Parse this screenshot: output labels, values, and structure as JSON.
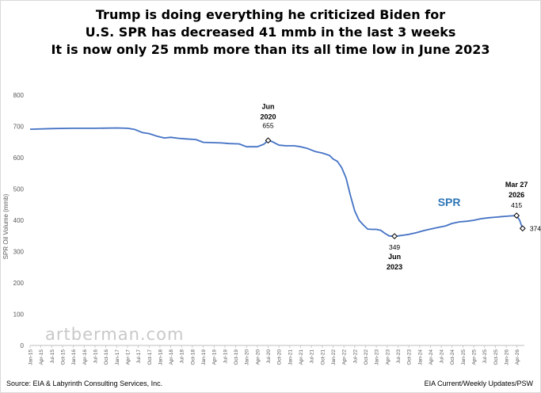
{
  "titles": {
    "line1": "Trump is doing everything he criticized Biden for",
    "line2": "U.S. SPR has decreased 41 mmb in the last 3 weeks",
    "line3": "It is now only 25 mmb more than its all time low in June 2023"
  },
  "footer": {
    "source_left": "Source: EIA & Labyrinth Consulting Services, Inc.",
    "source_right": "EIA Current/Weekly Updates/PSW",
    "watermark": "artberman.com"
  },
  "colors": {
    "line": "#4472c4",
    "series_label": "#2e75b6",
    "axis": "#bfbfbf",
    "text": "#595959"
  },
  "chart_data": {
    "type": "line",
    "ylabel": "SPR Oil Volume (mmb)",
    "xlabel": "",
    "ylim": [
      0,
      800
    ],
    "yticks": [
      0,
      100,
      200,
      300,
      400,
      500,
      600,
      700,
      800
    ],
    "xlim": [
      2015.0,
      2026.42
    ],
    "grid": false,
    "legend": "none",
    "xtick_labels": [
      "Jan-15",
      "Apr-15",
      "Jul-15",
      "Oct-15",
      "Jan-16",
      "Apr-16",
      "Jul-16",
      "Oct-16",
      "Jan-17",
      "Apr-17",
      "Jul-17",
      "Oct-17",
      "Jan-18",
      "Apr-18",
      "Jul-18",
      "Oct-18",
      "Jan-19",
      "Apr-19",
      "Jul-19",
      "Oct-19",
      "Jan-20",
      "Apr-20",
      "Jul-20",
      "Oct-20",
      "Jan-21",
      "Apr-21",
      "Jul-21",
      "Oct-21",
      "Jan-22",
      "Apr-22",
      "Jul-22",
      "Oct-22",
      "Jan-23",
      "Apr-23",
      "Jul-23",
      "Oct-23",
      "Jan-24",
      "Apr-24",
      "Jul-24",
      "Oct-24",
      "Jan-25",
      "Apr-25",
      "Jul-25",
      "Oct-25",
      "Jan-26",
      "Apr-26"
    ],
    "series": [
      {
        "name": "SPR",
        "x": [
          2015.0,
          2015.5,
          2016.0,
          2016.5,
          2017.0,
          2017.25,
          2017.42,
          2017.6,
          2017.75,
          2017.92,
          2018.1,
          2018.25,
          2018.42,
          2018.6,
          2018.83,
          2019.0,
          2019.2,
          2019.42,
          2019.6,
          2019.83,
          2020.0,
          2020.25,
          2020.4,
          2020.5,
          2020.6,
          2020.75,
          2020.92,
          2021.1,
          2021.25,
          2021.4,
          2021.58,
          2021.75,
          2021.92,
          2022.0,
          2022.1,
          2022.2,
          2022.3,
          2022.4,
          2022.5,
          2022.6,
          2022.7,
          2022.8,
          2022.9,
          2023.0,
          2023.1,
          2023.2,
          2023.3,
          2023.42,
          2023.5,
          2023.6,
          2023.75,
          2023.92,
          2024.1,
          2024.25,
          2024.42,
          2024.6,
          2024.75,
          2024.92,
          2025.1,
          2025.25,
          2025.42,
          2025.6,
          2025.75,
          2025.92,
          2026.1,
          2026.24,
          2026.31,
          2026.38
        ],
        "values": [
          691,
          693,
          694,
          694,
          695,
          694,
          690,
          680,
          677,
          669,
          663,
          665,
          662,
          660,
          658,
          649,
          648,
          647,
          645,
          644,
          635,
          635,
          643,
          655,
          651,
          640,
          638,
          638,
          635,
          630,
          620,
          615,
          607,
          596,
          588,
          568,
          535,
          480,
          430,
          400,
          385,
          372,
          371,
          371,
          368,
          358,
          350,
          349,
          350,
          352,
          355,
          360,
          367,
          372,
          377,
          382,
          390,
          395,
          397,
          400,
          405,
          408,
          410,
          412,
          414,
          415,
          400,
          374
        ]
      }
    ],
    "series_label": "SPR",
    "annotations": [
      {
        "lines": [
          "Jun",
          "2020"
        ],
        "value_label": "655",
        "x": 2020.5,
        "y": 655,
        "marker": true
      },
      {
        "lines": [
          "Jun",
          "2023"
        ],
        "value_label": "349",
        "x": 2023.42,
        "y": 349,
        "marker": true
      },
      {
        "lines": [
          "Mar 27",
          "2026"
        ],
        "value_label": "415",
        "x": 2026.24,
        "y": 415,
        "marker": true
      },
      {
        "lines": [],
        "value_label": "374",
        "x": 2026.38,
        "y": 374,
        "marker": true
      }
    ]
  }
}
